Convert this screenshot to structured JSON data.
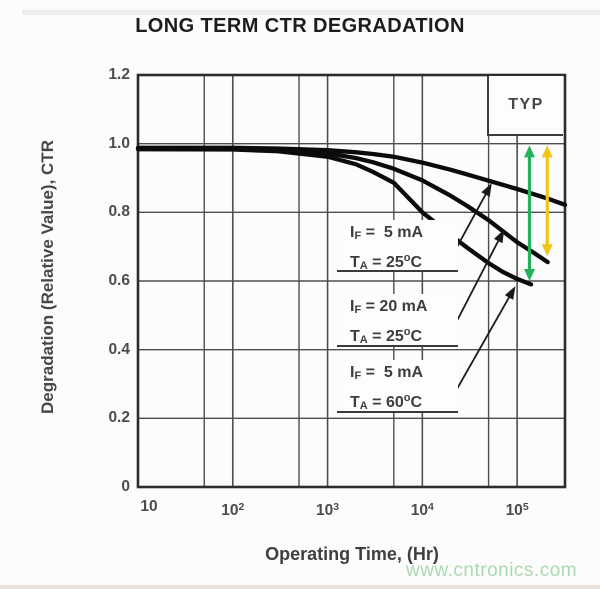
{
  "typ_label": "TYP",
  "watermark": "www.cntronics.com",
  "chart_data": {
    "type": "line",
    "title": "LONG TERM CTR DEGRADATION",
    "xlabel": "Operating Time, (Hr)",
    "ylabel": "Degradation (Relative Value), CTR",
    "x_scale": "log",
    "xlim": [
      10,
      320000
    ],
    "ylim": [
      0,
      1.2
    ],
    "grid": "on",
    "curve_color": "#0b0b0b",
    "grid_color": "#4e4e4e",
    "border_color": "#2c2c2c",
    "x_ticks": [
      {
        "t": 10,
        "base": "10",
        "sup": ""
      },
      {
        "t": 100,
        "base": "10",
        "sup": "2"
      },
      {
        "t": 1000,
        "base": "10",
        "sup": "3"
      },
      {
        "t": 10000,
        "base": "10",
        "sup": "4"
      },
      {
        "t": 100000,
        "base": "10",
        "sup": "5"
      }
    ],
    "x_minor_gridlines": [
      50,
      500,
      5000,
      50000
    ],
    "y_ticks": [
      {
        "v": 0,
        "label": "0"
      },
      {
        "v": 0.2,
        "label": "0.2"
      },
      {
        "v": 0.4,
        "label": "0.4"
      },
      {
        "v": 0.6,
        "label": "0.6"
      },
      {
        "v": 0.8,
        "label": "0.8"
      },
      {
        "v": 1.0,
        "label": "1.0"
      },
      {
        "v": 1.2,
        "label": "1.2"
      }
    ],
    "series": [
      {
        "name": "IF = 5 mA, TA = 25°C",
        "points": [
          [
            10,
            0.988
          ],
          [
            30,
            0.988
          ],
          [
            100,
            0.988
          ],
          [
            300,
            0.986
          ],
          [
            1000,
            0.981
          ],
          [
            2000,
            0.975
          ],
          [
            3000,
            0.97
          ],
          [
            5000,
            0.962
          ],
          [
            10000,
            0.945
          ],
          [
            20000,
            0.924
          ],
          [
            30000,
            0.91
          ],
          [
            50000,
            0.892
          ],
          [
            100000,
            0.868
          ],
          [
            200000,
            0.842
          ],
          [
            320000,
            0.822
          ]
        ]
      },
      {
        "name": "IF = 20 mA, TA = 25°C",
        "points": [
          [
            10,
            0.986
          ],
          [
            100,
            0.986
          ],
          [
            300,
            0.982
          ],
          [
            1000,
            0.972
          ],
          [
            2000,
            0.958
          ],
          [
            3000,
            0.946
          ],
          [
            5000,
            0.927
          ],
          [
            10000,
            0.893
          ],
          [
            20000,
            0.848
          ],
          [
            30000,
            0.818
          ],
          [
            50000,
            0.777
          ],
          [
            100000,
            0.713
          ],
          [
            150000,
            0.682
          ],
          [
            210000,
            0.655
          ]
        ]
      },
      {
        "name": "IF = 5 mA, TA = 60°C",
        "points": [
          [
            10,
            0.984
          ],
          [
            100,
            0.983
          ],
          [
            300,
            0.978
          ],
          [
            1000,
            0.962
          ],
          [
            2000,
            0.94
          ],
          [
            3000,
            0.918
          ],
          [
            5000,
            0.886
          ],
          [
            10000,
            0.8
          ],
          [
            15000,
            0.762
          ],
          [
            20000,
            0.733
          ],
          [
            30000,
            0.696
          ],
          [
            50000,
            0.652
          ],
          [
            70000,
            0.627
          ],
          [
            100000,
            0.606
          ],
          [
            140000,
            0.59
          ]
        ]
      }
    ],
    "range_arrows": [
      {
        "name": "green-ctr-range-arrow",
        "color": "#23b25a",
        "t": 135000,
        "v_top": 0.995,
        "v_bottom": 0.6
      },
      {
        "name": "yellow-ctr-range-arrow",
        "color": "#f0c517",
        "t": 208000,
        "v_top": 0.995,
        "v_bottom": 0.672
      }
    ]
  },
  "annotations": [
    {
      "line1": {
        "sym": "I",
        "sub": "F",
        "rest": " =  5 mA"
      },
      "line2": {
        "sym": "T",
        "sub": "A",
        "rest": " = 25",
        "sup": "o",
        "unit": "C"
      },
      "leader_target": {
        "t": 54000,
        "v": 0.885
      }
    },
    {
      "line1": {
        "sym": "I",
        "sub": "F",
        "rest": " = 20 mA"
      },
      "line2": {
        "sym": "T",
        "sub": "A",
        "rest": " = 25",
        "sup": "o",
        "unit": "C"
      },
      "leader_target": {
        "t": 73000,
        "v": 0.75
      }
    },
    {
      "line1": {
        "sym": "I",
        "sub": "F",
        "rest": " =  5 mA"
      },
      "line2": {
        "sym": "T",
        "sub": "A",
        "rest": " = 60",
        "sup": "o",
        "unit": "C"
      },
      "leader_target": {
        "t": 96000,
        "v": 0.585
      }
    }
  ]
}
